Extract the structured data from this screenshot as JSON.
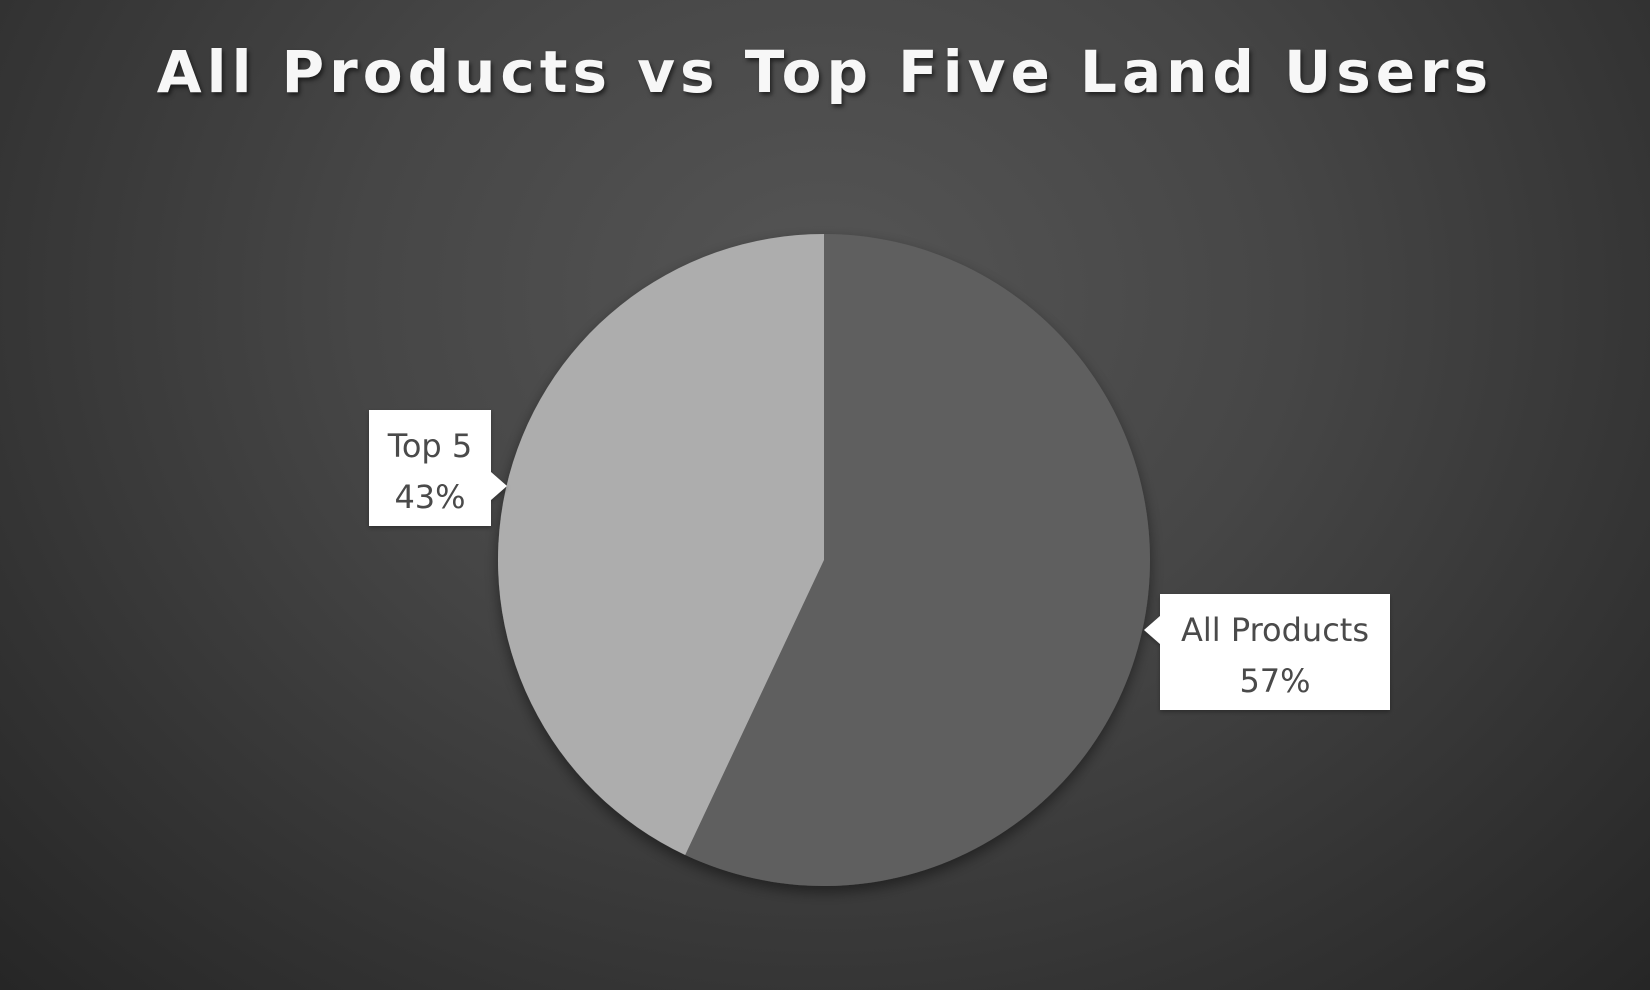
{
  "chart_data": {
    "type": "pie",
    "title": "All Products vs Top Five Land Users",
    "categories": [
      "All Products",
      "Top 5"
    ],
    "values": [
      57,
      43
    ],
    "labels": [
      {
        "name": "All Products",
        "percent": "57%"
      },
      {
        "name": "Top 5",
        "percent": "43%"
      }
    ],
    "colors": [
      "#5f5f5f",
      "#adadad"
    ],
    "start_angle_deg": 0,
    "direction": "clockwise",
    "legend": "none",
    "data_labels": "callout"
  }
}
